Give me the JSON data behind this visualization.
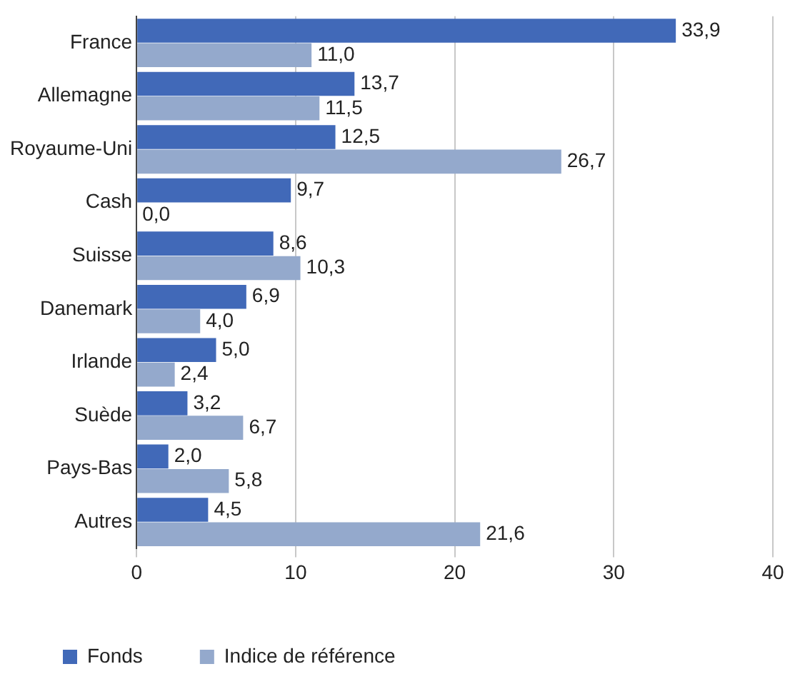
{
  "chart_data": {
    "type": "bar",
    "orientation": "horizontal",
    "categories": [
      "France",
      "Allemagne",
      "Royaume-Uni",
      "Cash",
      "Suisse",
      "Danemark",
      "Irlande",
      "Suède",
      "Pays-Bas",
      "Autres"
    ],
    "series": [
      {
        "name": "Fonds",
        "color": "#4169b8",
        "values": [
          33.9,
          13.7,
          12.5,
          9.7,
          8.6,
          6.9,
          5.0,
          3.2,
          2.0,
          4.5
        ],
        "value_labels": [
          "33,9",
          "13,7",
          "12,5",
          "9,7",
          "8,6",
          "6,9",
          "5,0",
          "3,2",
          "2,0",
          "4,5"
        ]
      },
      {
        "name": "Indice de référence",
        "color": "#94a9cc",
        "values": [
          11.0,
          11.5,
          26.7,
          0.0,
          10.3,
          4.0,
          2.4,
          6.7,
          5.8,
          21.6
        ],
        "value_labels": [
          "11,0",
          "11,5",
          "26,7",
          "0,0",
          "10,3",
          "4,0",
          "2,4",
          "6,7",
          "5,8",
          "21,6"
        ]
      }
    ],
    "xlim": [
      0,
      40
    ],
    "xticks": [
      0,
      10,
      20,
      30,
      40
    ],
    "grid": "x",
    "legend": "bottom left"
  }
}
